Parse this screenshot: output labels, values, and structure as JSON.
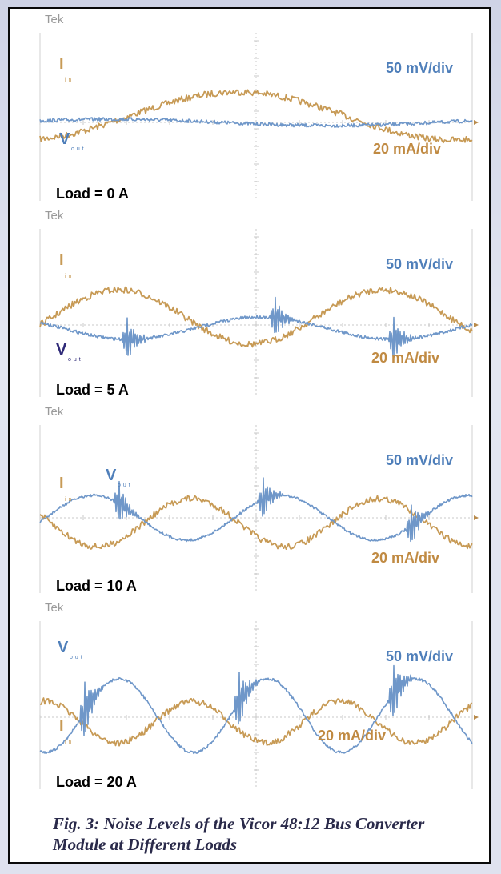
{
  "panels": [
    {
      "tek": "Tek",
      "scale_v": "50 mV/div",
      "scale_i": "20 mA/div",
      "load_label": "Load = 0 A",
      "i_sym": "I",
      "i_sub": "in",
      "v_sym": "V",
      "v_sub": "out"
    },
    {
      "tek": "Tek",
      "scale_v": "50 mV/div",
      "scale_i": "20 mA/div",
      "load_label": "Load = 5 A",
      "i_sym": "I",
      "i_sub": "in",
      "v_sym": "V",
      "v_sub": "out"
    },
    {
      "tek": "Tek",
      "scale_v": "50 mV/div",
      "scale_i": "20 mA/div",
      "load_label": "Load = 10 A",
      "i_sym": "I",
      "i_sub": "in",
      "v_sym": "V",
      "v_sub": "out"
    },
    {
      "tek": "Tek",
      "scale_v": "50 mV/div",
      "scale_i": "20 mA/div",
      "load_label": "Load = 20 A",
      "i_sym": "I",
      "i_sub": "in",
      "v_sym": "V",
      "v_sub": "out"
    }
  ],
  "caption": "Fig. 3:  Noise Levels of the Vicor 48:12 Bus Converter Module at Different Loads",
  "colors": {
    "vout": "#6f97c9",
    "iin": "#c79a55",
    "grid": "#c8c8c8"
  },
  "chart_data": [
    {
      "type": "line",
      "load": "Load = 0 A",
      "series": [
        {
          "name": "Vout",
          "scale": "50 mV/div"
        },
        {
          "name": "Iin",
          "scale": "20 mA/div"
        }
      ]
    },
    {
      "type": "line",
      "load": "Load = 5 A",
      "series": [
        {
          "name": "Vout",
          "scale": "50 mV/div"
        },
        {
          "name": "Iin",
          "scale": "20 mA/div"
        }
      ]
    },
    {
      "type": "line",
      "load": "Load = 10 A",
      "series": [
        {
          "name": "Vout",
          "scale": "50 mV/div"
        },
        {
          "name": "Iin",
          "scale": "20 mA/div"
        }
      ]
    },
    {
      "type": "line",
      "load": "Load = 20 A",
      "series": [
        {
          "name": "Vout",
          "scale": "50 mV/div"
        },
        {
          "name": "Iin",
          "scale": "20 mA/div"
        }
      ]
    }
  ]
}
